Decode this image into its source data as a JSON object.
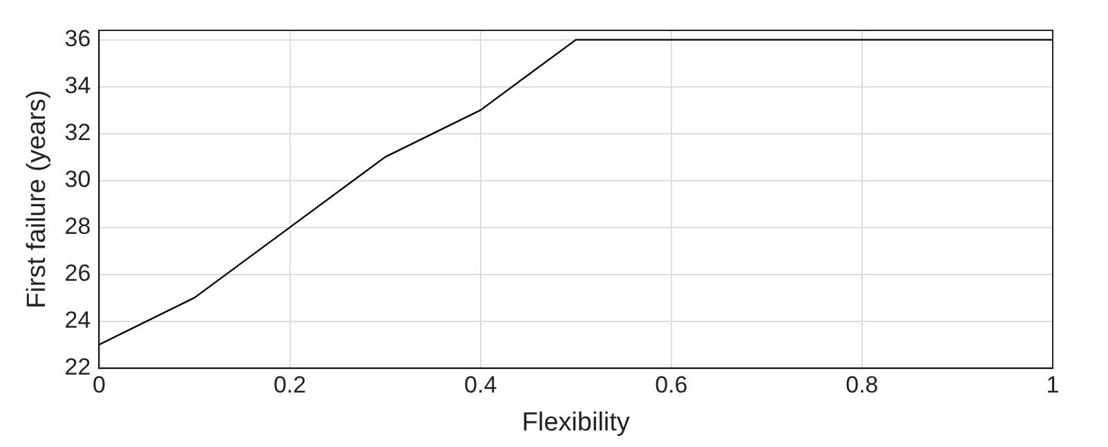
{
  "chart_data": {
    "type": "line",
    "xlabel": "Flexibility",
    "ylabel": "First failure (years)",
    "x": [
      0,
      0.1,
      0.2,
      0.3,
      0.4,
      0.5,
      0.6,
      0.7,
      0.8,
      0.9,
      1
    ],
    "series": [
      {
        "color": "#000000",
        "values": [
          23,
          25,
          28,
          31,
          33,
          36,
          36,
          36,
          36,
          36,
          36
        ]
      }
    ],
    "xlim": [
      0,
      1
    ],
    "xticks": [
      0,
      0.2,
      0.4,
      0.6,
      0.8,
      1
    ],
    "ylim": [
      22,
      36.4
    ],
    "yticks": [
      22,
      24,
      26,
      28,
      30,
      32,
      34,
      36
    ],
    "grid": true,
    "legend": false,
    "marker": "none",
    "line_style": "solid"
  }
}
